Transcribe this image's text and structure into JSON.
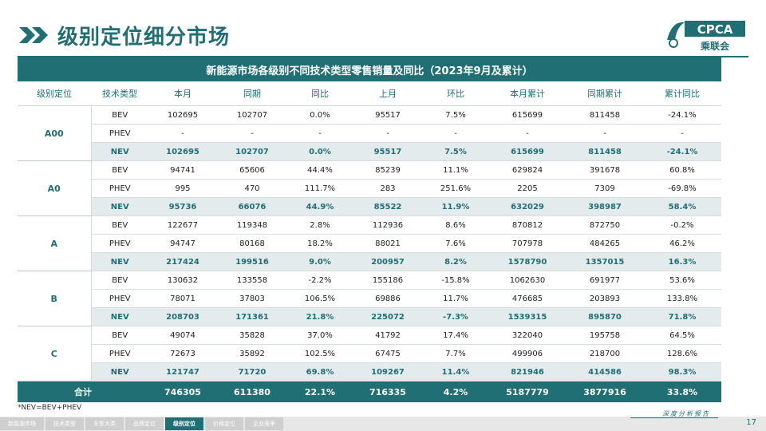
{
  "page_title": "级别定位细分市场",
  "logo": {
    "text": "CPCA",
    "subtext": "乘联会"
  },
  "table_title": "新能源市场各级别不同技术类型零售销量及同比（2023年9月及累计）",
  "columns": [
    "级别定位",
    "技术类型",
    "本月",
    "同期",
    "同比",
    "上月",
    "环比",
    "本月累计",
    "同期累计",
    "累计同比"
  ],
  "groups": [
    {
      "name": "A00",
      "rows": [
        {
          "type": "BEV",
          "m": "102695",
          "ly": "102707",
          "yoy": "0.0%",
          "pm": "95517",
          "mom": "7.5%",
          "cum": "615699",
          "lycum": "811458",
          "cumyoy": "-24.1%"
        },
        {
          "type": "PHEV",
          "m": "-",
          "ly": "-",
          "yoy": "-",
          "pm": "-",
          "mom": "-",
          "cum": "-",
          "lycum": "-",
          "cumyoy": "-"
        },
        {
          "type": "NEV",
          "m": "102695",
          "ly": "102707",
          "yoy": "0.0%",
          "pm": "95517",
          "mom": "7.5%",
          "cum": "615699",
          "lycum": "811458",
          "cumyoy": "-24.1%"
        }
      ]
    },
    {
      "name": "A0",
      "rows": [
        {
          "type": "BEV",
          "m": "94741",
          "ly": "65606",
          "yoy": "44.4%",
          "pm": "85239",
          "mom": "11.1%",
          "cum": "629824",
          "lycum": "391678",
          "cumyoy": "60.8%"
        },
        {
          "type": "PHEV",
          "m": "995",
          "ly": "470",
          "yoy": "111.7%",
          "pm": "283",
          "mom": "251.6%",
          "cum": "2205",
          "lycum": "7309",
          "cumyoy": "-69.8%"
        },
        {
          "type": "NEV",
          "m": "95736",
          "ly": "66076",
          "yoy": "44.9%",
          "pm": "85522",
          "mom": "11.9%",
          "cum": "632029",
          "lycum": "398987",
          "cumyoy": "58.4%"
        }
      ]
    },
    {
      "name": "A",
      "rows": [
        {
          "type": "BEV",
          "m": "122677",
          "ly": "119348",
          "yoy": "2.8%",
          "pm": "112936",
          "mom": "8.6%",
          "cum": "870812",
          "lycum": "872750",
          "cumyoy": "-0.2%"
        },
        {
          "type": "PHEV",
          "m": "94747",
          "ly": "80168",
          "yoy": "18.2%",
          "pm": "88021",
          "mom": "7.6%",
          "cum": "707978",
          "lycum": "484265",
          "cumyoy": "46.2%"
        },
        {
          "type": "NEV",
          "m": "217424",
          "ly": "199516",
          "yoy": "9.0%",
          "pm": "200957",
          "mom": "8.2%",
          "cum": "1578790",
          "lycum": "1357015",
          "cumyoy": "16.3%"
        }
      ]
    },
    {
      "name": "B",
      "rows": [
        {
          "type": "BEV",
          "m": "130632",
          "ly": "133558",
          "yoy": "-2.2%",
          "pm": "155186",
          "mom": "-15.8%",
          "cum": "1062630",
          "lycum": "691977",
          "cumyoy": "53.6%"
        },
        {
          "type": "PHEV",
          "m": "78071",
          "ly": "37803",
          "yoy": "106.5%",
          "pm": "69886",
          "mom": "11.7%",
          "cum": "476685",
          "lycum": "203893",
          "cumyoy": "133.8%"
        },
        {
          "type": "NEV",
          "m": "208703",
          "ly": "171361",
          "yoy": "21.8%",
          "pm": "225072",
          "mom": "-7.3%",
          "cum": "1539315",
          "lycum": "895870",
          "cumyoy": "71.8%"
        }
      ]
    },
    {
      "name": "C",
      "rows": [
        {
          "type": "BEV",
          "m": "49074",
          "ly": "35828",
          "yoy": "37.0%",
          "pm": "41792",
          "mom": "17.4%",
          "cum": "322040",
          "lycum": "195758",
          "cumyoy": "64.5%"
        },
        {
          "type": "PHEV",
          "m": "72673",
          "ly": "35892",
          "yoy": "102.5%",
          "pm": "67475",
          "mom": "7.7%",
          "cum": "499906",
          "lycum": "218700",
          "cumyoy": "128.6%"
        },
        {
          "type": "NEV",
          "m": "121747",
          "ly": "71720",
          "yoy": "69.8%",
          "pm": "109267",
          "mom": "11.4%",
          "cum": "821946",
          "lycum": "414586",
          "cumyoy": "98.3%"
        }
      ]
    }
  ],
  "total": {
    "label": "合计",
    "m": "746305",
    "ly": "611380",
    "yoy": "22.1%",
    "pm": "716335",
    "mom": "4.2%",
    "cum": "5187779",
    "lycum": "3877916",
    "cumyoy": "33.8%"
  },
  "footnote": "*NEV=BEV+PHEV",
  "nav": [
    {
      "label": "新能源市场",
      "active": false
    },
    {
      "label": "技术类型",
      "active": false
    },
    {
      "label": "车型大类",
      "active": false
    },
    {
      "label": "品牌定位",
      "active": false
    },
    {
      "label": "级别定位",
      "active": true
    },
    {
      "label": "价格定位",
      "active": false
    },
    {
      "label": "企业竞争",
      "active": false
    }
  ],
  "slogan": "深度分析报告",
  "page_number": "17",
  "colors": {
    "primary": "#1f6f75",
    "nev_row": "#e4ebed"
  }
}
